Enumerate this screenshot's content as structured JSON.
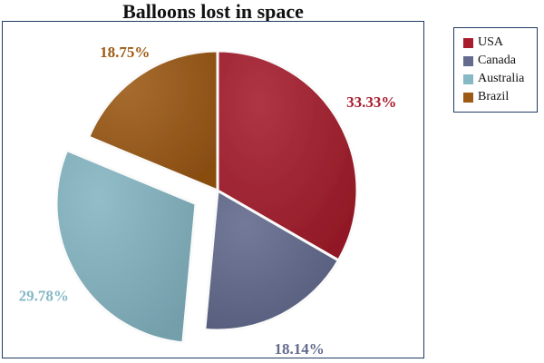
{
  "chart_data": {
    "type": "pie",
    "title": "Balloons lost in space",
    "legend_position": "right",
    "slices": [
      {
        "name": "USA",
        "value": 33.33,
        "label": "33.33%",
        "color": "#a81c2c",
        "exploded": false
      },
      {
        "name": "Canada",
        "value": 18.14,
        "label": "18.14%",
        "color": "#636b8f",
        "exploded": false
      },
      {
        "name": "Australia",
        "value": 29.78,
        "label": "29.78%",
        "color": "#86b8c6",
        "exploded": true
      },
      {
        "name": "Brazil",
        "value": 18.75,
        "label": "18.75%",
        "color": "#9e5a14",
        "exploded": false
      }
    ]
  }
}
